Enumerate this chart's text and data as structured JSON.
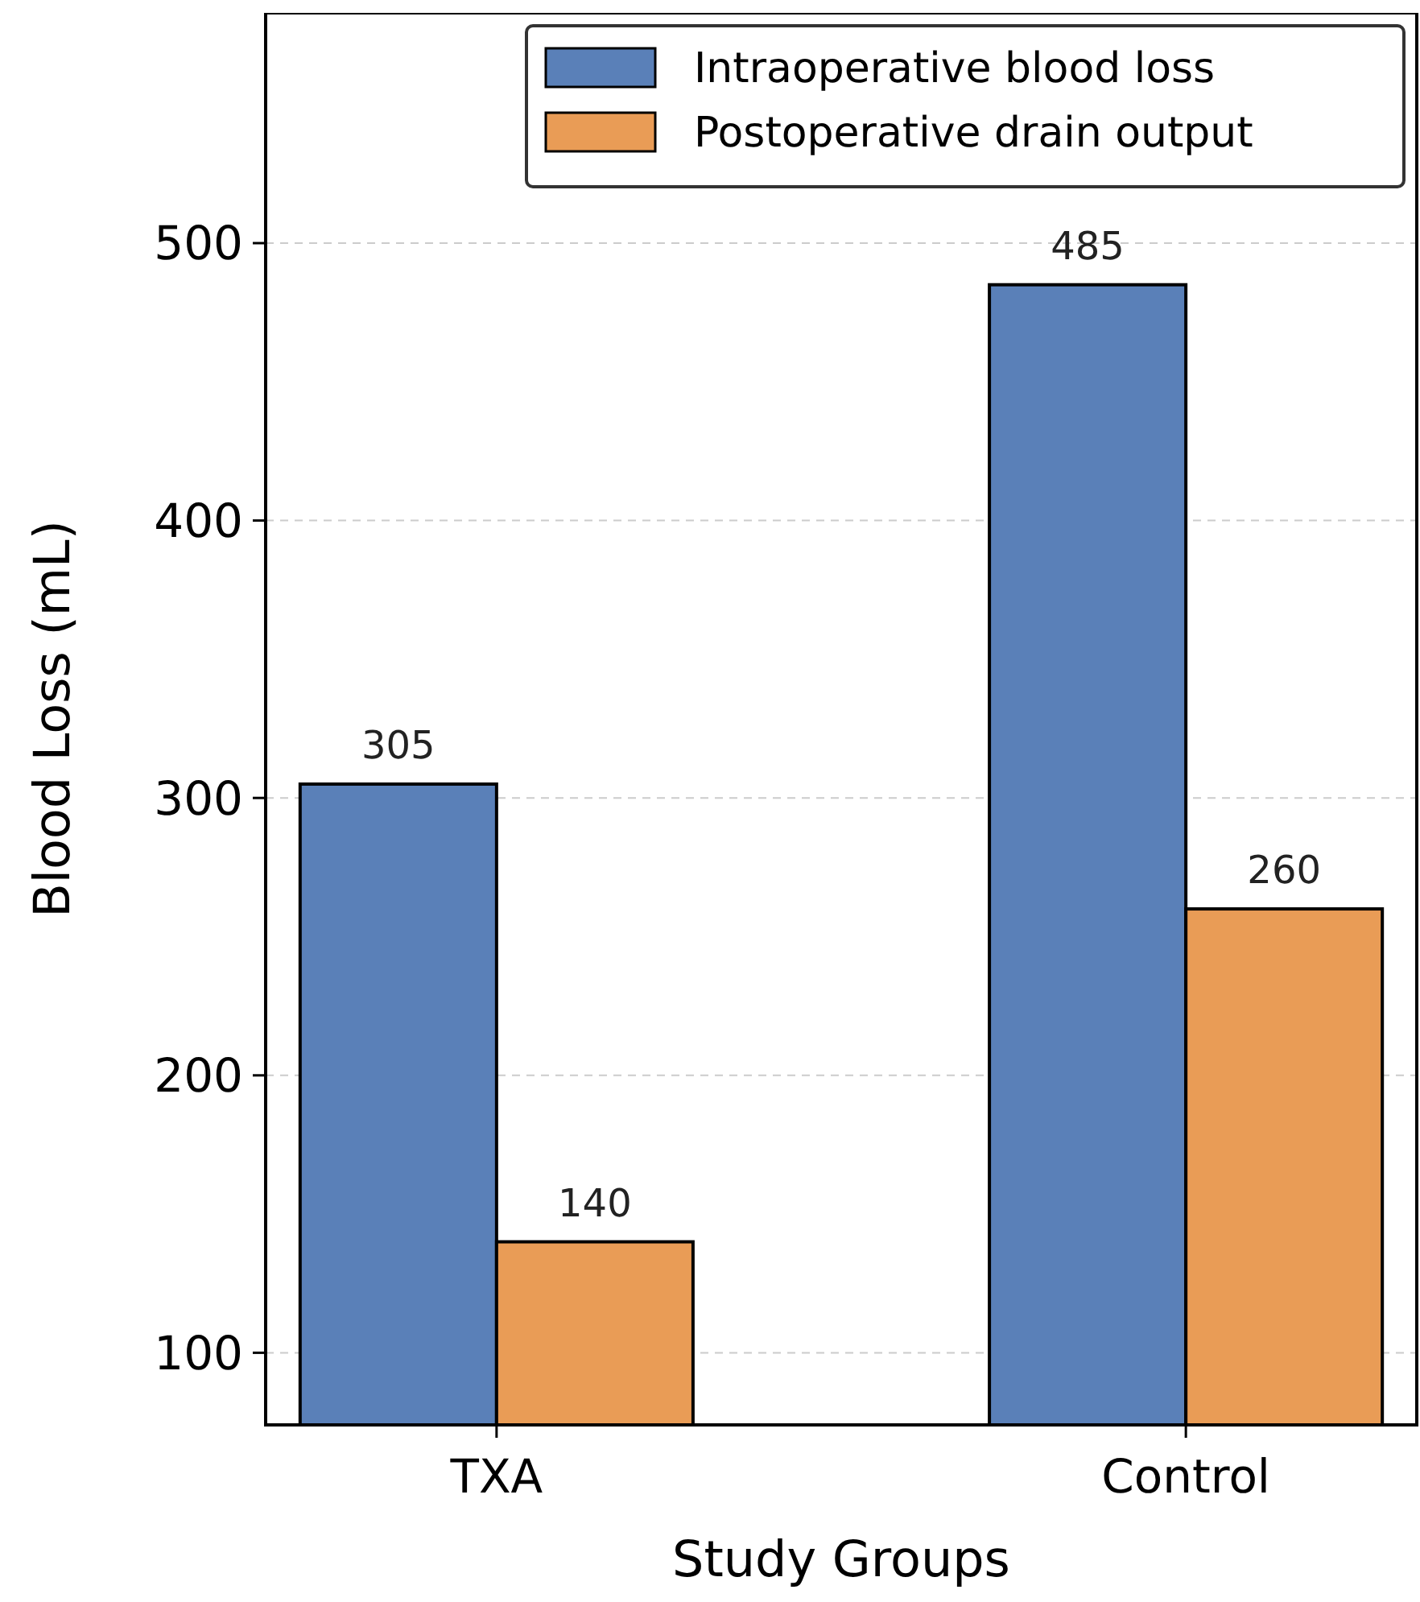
{
  "chart_data": {
    "type": "bar",
    "xlabel": "Study Groups",
    "ylabel": "Blood Loss (mL)",
    "categories": [
      "TXA",
      "Control"
    ],
    "series": [
      {
        "name": "Intraoperative blood loss",
        "color": "#5a80b8",
        "values": [
          305,
          485
        ]
      },
      {
        "name": "Postoperative drain output",
        "color": "#e99c56",
        "values": [
          140,
          260
        ]
      }
    ],
    "ylim": [
      74,
      583
    ],
    "yticks": [
      100,
      200,
      300,
      400,
      500
    ],
    "grid": "y",
    "legend": "top right",
    "data_labels": true
  }
}
